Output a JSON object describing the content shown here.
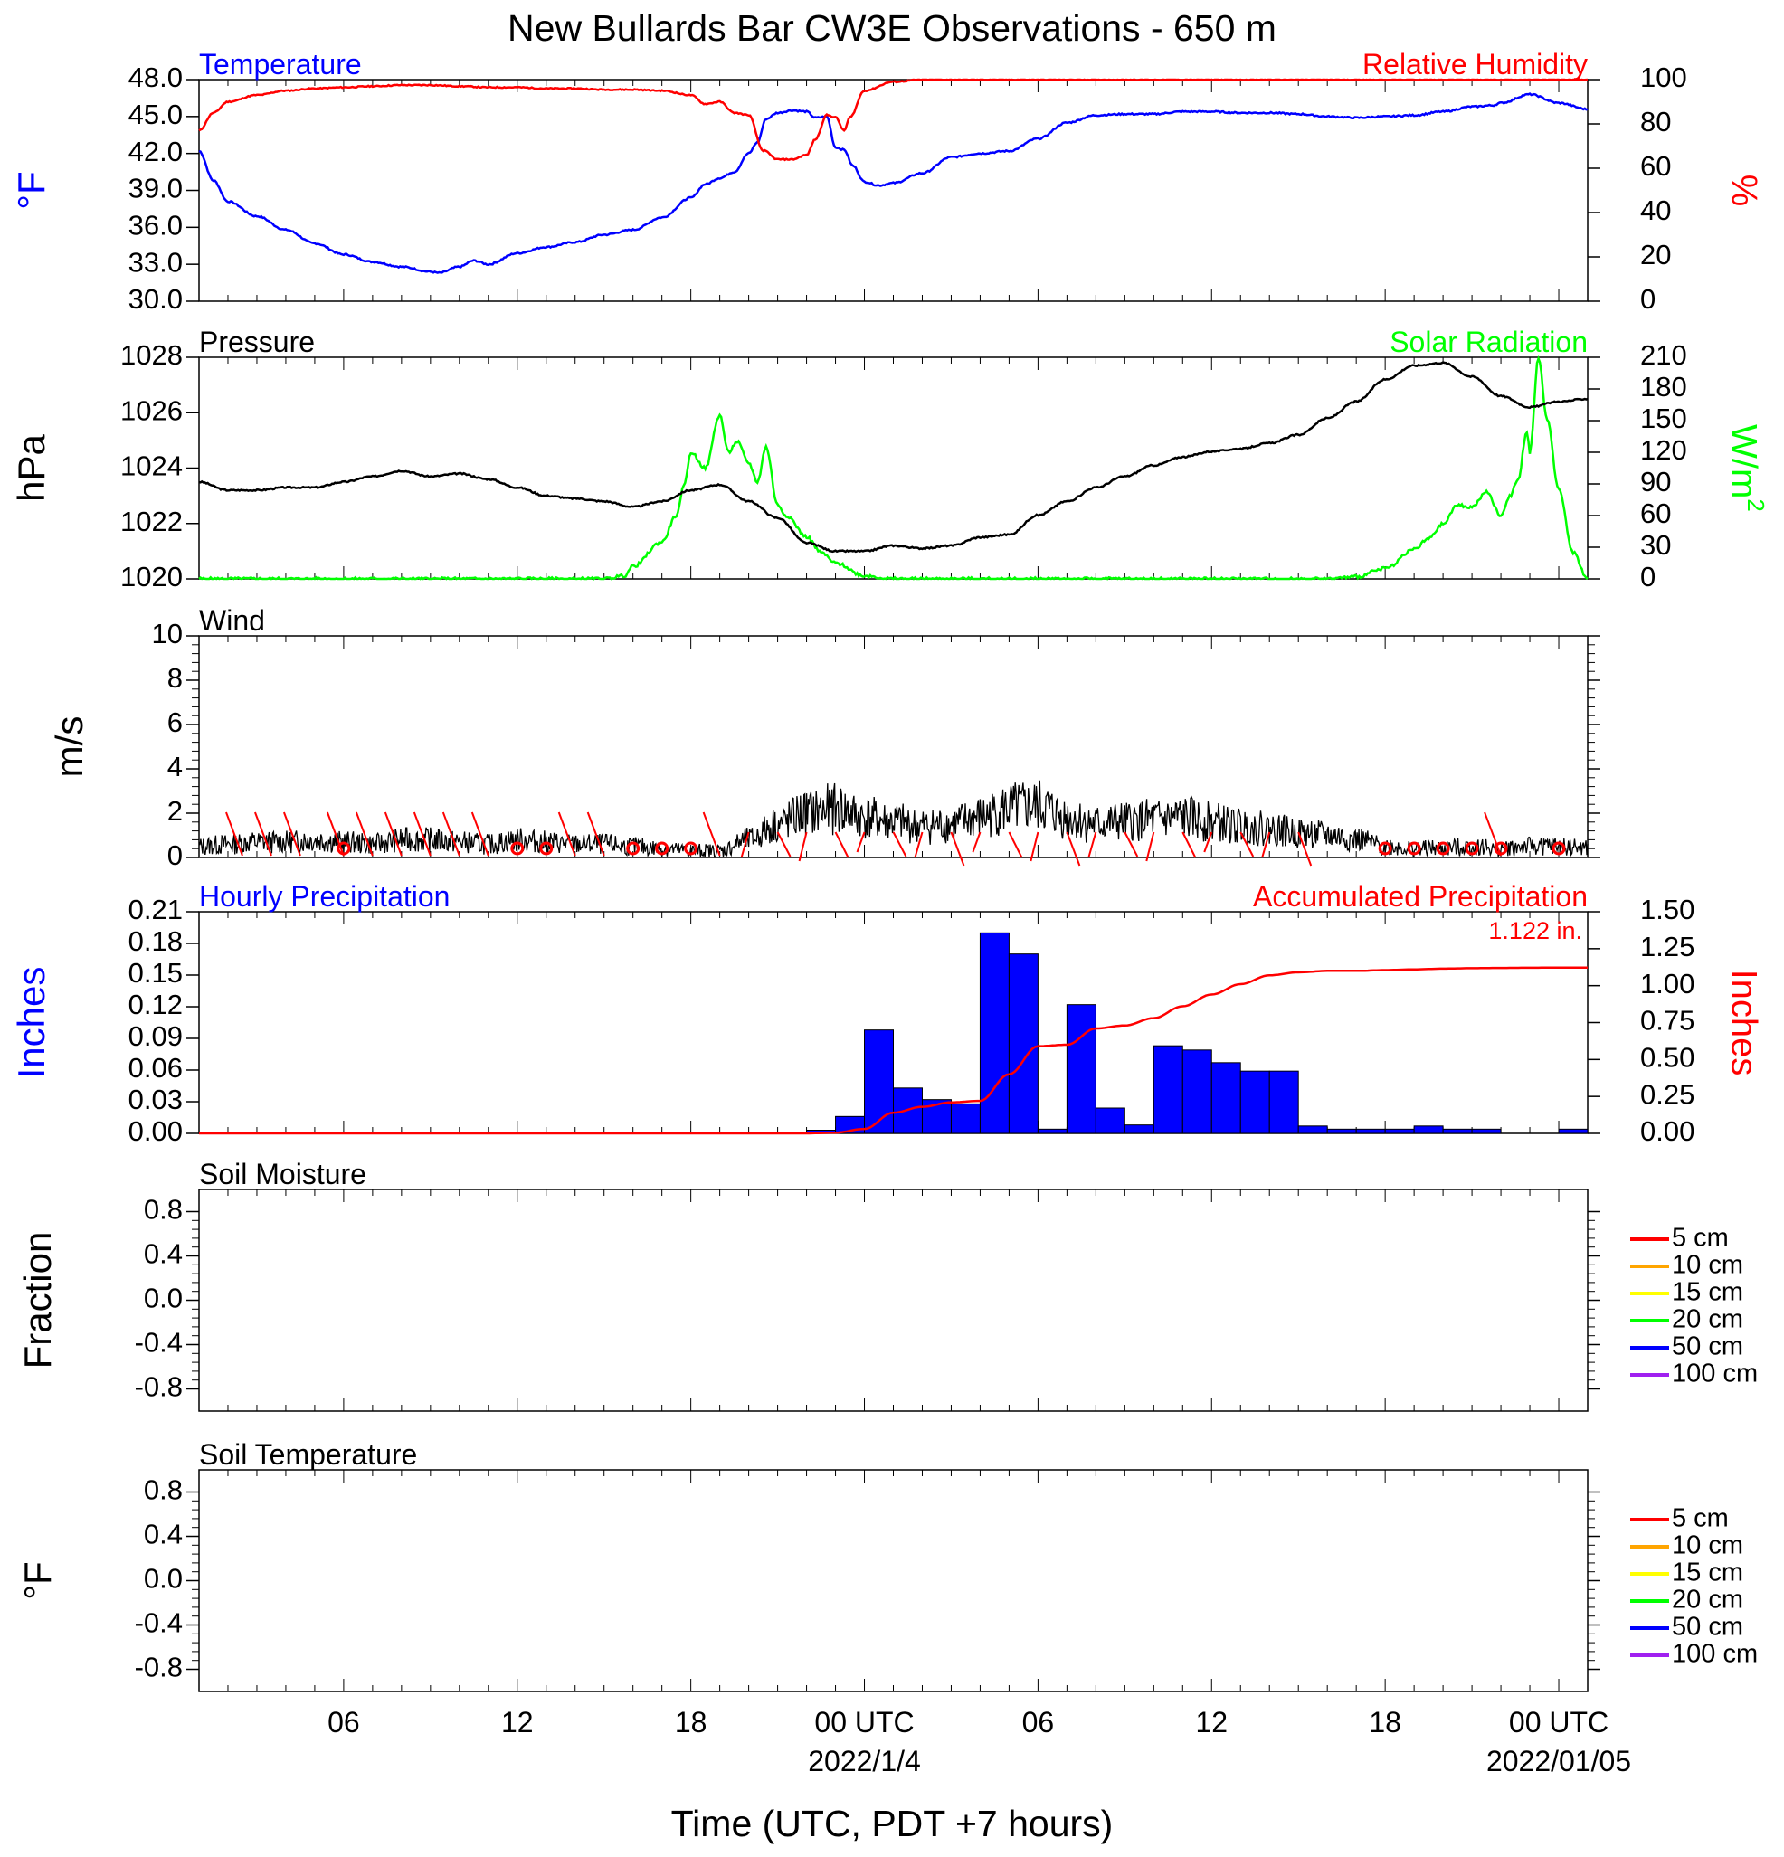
{
  "title": "New Bullards Bar CW3E Observations - 650 m",
  "xlabel": "Time (UTC, PDT +7 hours)",
  "x_ticks": [
    {
      "hour": 6,
      "label": "06",
      "sub": ""
    },
    {
      "hour": 12,
      "label": "12",
      "sub": ""
    },
    {
      "hour": 18,
      "label": "18",
      "sub": ""
    },
    {
      "hour": 24,
      "label": "00 UTC",
      "sub": "2022/1/4"
    },
    {
      "hour": 30,
      "label": "06",
      "sub": ""
    },
    {
      "hour": 36,
      "label": "12",
      "sub": ""
    },
    {
      "hour": 42,
      "label": "18",
      "sub": ""
    },
    {
      "hour": 48,
      "label": "00 UTC",
      "sub": "2022/01/05"
    }
  ],
  "colors": {
    "temperature": "#0000ff",
    "humidity": "#ff0000",
    "pressure": "#000000",
    "solar": "#00ff00",
    "wind": "#000000",
    "barb": "#ff0000",
    "precip_bar": "#0000ff",
    "accum": "#ff0000"
  },
  "chart_data": [
    {
      "type": "line",
      "panel": "temperature-humidity",
      "left_title": "Temperature",
      "right_title": "Relative Humidity",
      "ylabel_left": "°F",
      "ylabel_right": "%",
      "xlim": [
        1,
        49
      ],
      "ylim_left": [
        30,
        48
      ],
      "ylim_right": [
        0,
        100
      ],
      "yticks_left": [
        "30.0",
        "33.0",
        "36.0",
        "39.0",
        "42.0",
        "45.0",
        "48.0"
      ],
      "yticks_right": [
        "0",
        "20",
        "40",
        "60",
        "80",
        "100"
      ],
      "series": [
        {
          "axis": "left",
          "x": [
            1,
            1.5,
            2,
            3,
            4,
            5,
            6,
            7,
            8,
            9,
            9.3,
            10,
            10.5,
            11,
            12,
            13,
            14,
            15,
            16,
            17,
            18,
            18.5,
            19,
            19.5,
            20,
            20.3,
            20.6,
            21,
            21.5,
            22,
            22.3,
            22.7,
            23,
            23.3,
            23.6,
            24,
            24.5,
            25,
            26,
            27,
            28,
            29,
            30,
            31,
            32,
            33,
            34,
            35,
            36,
            37,
            38,
            39,
            40,
            41,
            42,
            43,
            44,
            45,
            45.7,
            46,
            47,
            48,
            49
          ],
          "y": [
            42.2,
            39.8,
            38.1,
            36.9,
            35.8,
            34.7,
            33.8,
            33.2,
            32.8,
            32.4,
            32.3,
            32.8,
            33.3,
            33.0,
            33.9,
            34.4,
            34.8,
            35.4,
            35.8,
            36.8,
            38.4,
            39.5,
            40.0,
            40.5,
            42.0,
            42.9,
            44.8,
            45.3,
            45.5,
            45.4,
            44.9,
            45.0,
            42.5,
            42.3,
            41.0,
            39.7,
            39.4,
            39.6,
            40.4,
            41.7,
            42.0,
            42.2,
            43.2,
            44.5,
            45.1,
            45.2,
            45.2,
            45.4,
            45.4,
            45.3,
            45.3,
            45.2,
            45.0,
            44.9,
            45.0,
            45.1,
            45.4,
            45.8,
            45.9,
            46.1,
            46.8,
            46.1,
            45.6
          ]
        },
        {
          "axis": "right",
          "x": [
            1,
            1.5,
            2,
            3,
            4,
            5,
            6,
            7,
            8,
            9,
            10,
            11,
            12,
            13,
            14,
            15,
            16,
            17,
            18,
            18.5,
            19,
            19.5,
            20,
            20.5,
            21,
            21.5,
            22,
            22.3,
            22.7,
            23,
            23.3,
            23.5,
            24,
            25,
            26,
            27,
            28,
            29,
            30,
            31,
            32,
            33,
            34,
            35,
            36,
            37,
            38,
            39,
            40,
            41,
            42,
            43,
            44,
            45,
            46,
            47,
            48,
            49
          ],
          "y": [
            77,
            85,
            90,
            93,
            95,
            96,
            96.5,
            97,
            97.5,
            97.5,
            97,
            96.5,
            96.5,
            96,
            96,
            95.5,
            95.5,
            95,
            93,
            89,
            90,
            85,
            84,
            68,
            64,
            64,
            66,
            73,
            84,
            83,
            77,
            83,
            95,
            99,
            100,
            100,
            100,
            100,
            100,
            100,
            100,
            100,
            100,
            100,
            100,
            100,
            100,
            100,
            100,
            100,
            100,
            100,
            100,
            100,
            100,
            100,
            100,
            100
          ]
        }
      ]
    },
    {
      "type": "line",
      "panel": "pressure-solar",
      "left_title": "Pressure",
      "right_title": "Solar Radiation",
      "ylabel_left": "hPa",
      "ylabel_right": "W/m",
      "ylabel_right_sup": "2",
      "xlim": [
        1,
        49
      ],
      "ylim_left": [
        1020,
        1028
      ],
      "ylim_right": [
        0,
        210
      ],
      "yticks_left": [
        "1020",
        "1022",
        "1024",
        "1026",
        "1028"
      ],
      "yticks_right": [
        "0",
        "30",
        "60",
        "90",
        "120",
        "150",
        "180",
        "210"
      ],
      "series": [
        {
          "axis": "left",
          "x": [
            1,
            2,
            3,
            4,
            5,
            6,
            7,
            8,
            9,
            10,
            11,
            12,
            13,
            14,
            15,
            16,
            17,
            18,
            19,
            20,
            21,
            22,
            23,
            24,
            25,
            26,
            27,
            28,
            29,
            30,
            31,
            32,
            33,
            34,
            35,
            36,
            37,
            38,
            39,
            40,
            41,
            42,
            43,
            44,
            45,
            46,
            47,
            48,
            49
          ],
          "y": [
            1023.5,
            1023.2,
            1023.2,
            1023.3,
            1023.3,
            1023.5,
            1023.7,
            1023.9,
            1023.7,
            1023.8,
            1023.6,
            1023.3,
            1023.0,
            1022.9,
            1022.8,
            1022.6,
            1022.8,
            1023.2,
            1023.4,
            1022.8,
            1022.2,
            1021.3,
            1021.0,
            1021.0,
            1021.2,
            1021.1,
            1021.2,
            1021.5,
            1021.6,
            1022.3,
            1022.8,
            1023.3,
            1023.7,
            1024.1,
            1024.4,
            1024.6,
            1024.7,
            1024.9,
            1025.2,
            1025.8,
            1026.4,
            1027.2,
            1027.7,
            1027.8,
            1027.3,
            1026.6,
            1026.2,
            1026.4,
            1026.5
          ]
        },
        {
          "axis": "right",
          "x": [
            1,
            15,
            15.7,
            16,
            17,
            17.5,
            17.8,
            18,
            18.5,
            19,
            19.3,
            19.6,
            20,
            20.3,
            20.6,
            21,
            21.3,
            22,
            22.5,
            23,
            24,
            25,
            30,
            40,
            41,
            42,
            43,
            43.5,
            44,
            44.5,
            45,
            45.5,
            46,
            46.3,
            46.6,
            46.9,
            47,
            47.3,
            47.6,
            48,
            48.5,
            49
          ],
          "y": [
            0,
            0,
            3,
            12,
            35,
            60,
            92,
            120,
            105,
            155,
            120,
            130,
            110,
            92,
            125,
            70,
            60,
            40,
            25,
            15,
            3,
            0,
            0,
            0,
            2,
            10,
            28,
            38,
            52,
            70,
            68,
            82,
            60,
            78,
            95,
            140,
            120,
            210,
            150,
            85,
            25,
            0
          ]
        }
      ]
    },
    {
      "type": "line",
      "panel": "wind",
      "left_title": "Wind",
      "ylabel": "m/s",
      "xlim": [
        1,
        49
      ],
      "ylim": [
        0,
        10
      ],
      "yticks": [
        "0",
        "2",
        "4",
        "6",
        "8",
        "10"
      ],
      "series": [
        {
          "name": "",
          "x": [
            1,
            2,
            3,
            4,
            5,
            6,
            7,
            8,
            9,
            10,
            11,
            12,
            13,
            14,
            15,
            16,
            17,
            18,
            19,
            20,
            21,
            22,
            23,
            24,
            25,
            26,
            27,
            28,
            29,
            30,
            31,
            32,
            33,
            34,
            35,
            36,
            37,
            38,
            39,
            40,
            41,
            42,
            43,
            44,
            45,
            46,
            47,
            48,
            49
          ],
          "y": [
            0.5,
            0.6,
            0.7,
            0.7,
            0.8,
            0.7,
            0.6,
            0.8,
            0.8,
            0.7,
            0.6,
            0.8,
            0.7,
            0.6,
            0.6,
            0.5,
            0.4,
            0.3,
            0.3,
            0.8,
            1.5,
            2.0,
            2.2,
            1.8,
            1.6,
            1.4,
            1.5,
            1.8,
            2.2,
            2.3,
            1.8,
            1.5,
            1.6,
            1.7,
            1.8,
            1.6,
            1.4,
            1.3,
            1.1,
            1.0,
            0.8,
            0.5,
            0.4,
            0.4,
            0.5,
            0.4,
            0.5,
            0.5,
            0.4
          ]
        }
      ],
      "wind_barbs_x": [
        2.5,
        3.5,
        4.5,
        6,
        7,
        8,
        9,
        10,
        11,
        14,
        15,
        19,
        20,
        21,
        22,
        23,
        24,
        25,
        26,
        27,
        28,
        29,
        30,
        31,
        32,
        33,
        34,
        35,
        36,
        37,
        38,
        39,
        46
      ],
      "wind_calm_x": [
        6,
        12,
        13,
        16,
        17,
        18,
        42,
        43,
        44,
        45,
        46,
        48
      ]
    },
    {
      "type": "bar",
      "panel": "precipitation",
      "left_title": "Hourly Precipitation",
      "right_title": "Accumulated Precipitation",
      "ylabel_left": "Inches",
      "ylabel_right": "Inches",
      "xlim": [
        1,
        49
      ],
      "ylim_left": [
        0,
        0.21
      ],
      "ylim_right": [
        0,
        1.5
      ],
      "yticks_left": [
        "0.00",
        "0.03",
        "0.06",
        "0.09",
        "0.12",
        "0.15",
        "0.18",
        "0.21"
      ],
      "yticks_right": [
        "0.00",
        "0.25",
        "0.50",
        "0.75",
        "1.00",
        "1.25",
        "1.50"
      ],
      "total_label": "1.122 in.",
      "bars_start_hour": [
        22,
        23,
        24,
        25,
        26,
        27,
        28,
        29,
        30,
        31,
        32,
        33,
        34,
        35,
        36,
        37,
        38,
        39,
        40,
        41,
        42,
        43,
        44,
        45,
        46,
        47,
        48
      ],
      "values": [
        0.003,
        0.016,
        0.098,
        0.043,
        0.032,
        0.028,
        0.19,
        0.17,
        0.004,
        0.122,
        0.024,
        0.008,
        0.083,
        0.079,
        0.067,
        0.059,
        0.059,
        0.007,
        0.004,
        0.004,
        0.004,
        0.007,
        0.004,
        0.004,
        0.0,
        0.0,
        0.004
      ],
      "accumulated": {
        "x": [
          1,
          22,
          23,
          24,
          25,
          26,
          27,
          28,
          29,
          30,
          31,
          32,
          33,
          34,
          35,
          36,
          37,
          38,
          39,
          40,
          41,
          42,
          43,
          44,
          45,
          46,
          47,
          48,
          49
        ],
        "y": [
          0,
          0,
          0.005,
          0.03,
          0.14,
          0.18,
          0.21,
          0.22,
          0.4,
          0.59,
          0.6,
          0.71,
          0.73,
          0.78,
          0.86,
          0.94,
          1.01,
          1.07,
          1.09,
          1.1,
          1.1,
          1.105,
          1.11,
          1.115,
          1.118,
          1.12,
          1.121,
          1.122,
          1.122
        ]
      }
    },
    {
      "type": "line",
      "panel": "soil-moisture",
      "left_title": "Soil Moisture",
      "ylabel": "Fraction",
      "xlim": [
        1,
        49
      ],
      "ylim": [
        -1,
        1
      ],
      "yticks": [
        "-0.8",
        "-0.4",
        "0.0",
        "0.4",
        "0.8"
      ],
      "legend": [
        {
          "label": "5 cm",
          "color": "#ff0000"
        },
        {
          "label": "10 cm",
          "color": "#ffa500"
        },
        {
          "label": "15 cm",
          "color": "#ffff00"
        },
        {
          "label": "20 cm",
          "color": "#00ff00"
        },
        {
          "label": "50 cm",
          "color": "#0000ff"
        },
        {
          "label": "100 cm",
          "color": "#a020f0"
        }
      ],
      "series": []
    },
    {
      "type": "line",
      "panel": "soil-temperature",
      "left_title": "Soil Temperature",
      "ylabel": "°F",
      "xlim": [
        1,
        49
      ],
      "ylim": [
        -1,
        1
      ],
      "yticks": [
        "-0.8",
        "-0.4",
        "0.0",
        "0.4",
        "0.8"
      ],
      "legend": [
        {
          "label": "5 cm",
          "color": "#ff0000"
        },
        {
          "label": "10 cm",
          "color": "#ffa500"
        },
        {
          "label": "15 cm",
          "color": "#ffff00"
        },
        {
          "label": "20 cm",
          "color": "#00ff00"
        },
        {
          "label": "50 cm",
          "color": "#0000ff"
        },
        {
          "label": "100 cm",
          "color": "#a020f0"
        }
      ],
      "series": []
    }
  ]
}
